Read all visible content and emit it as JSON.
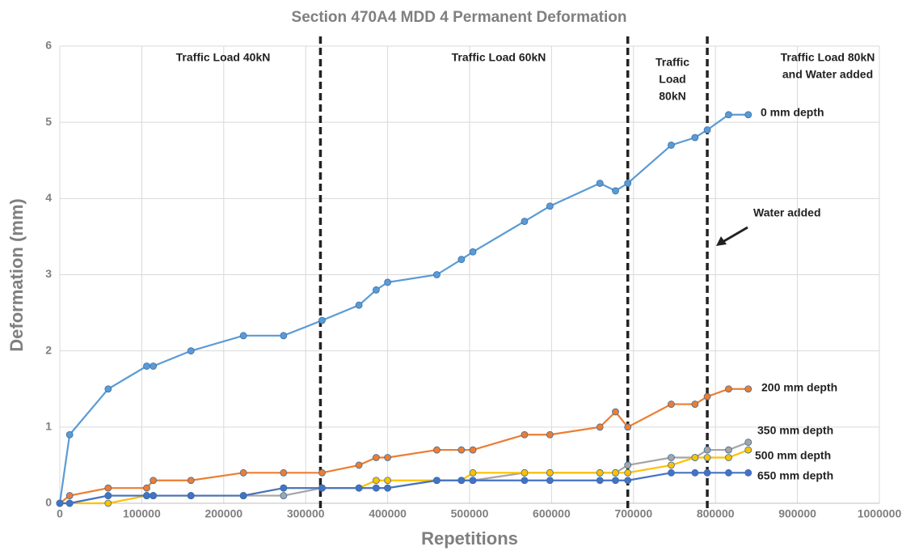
{
  "chart_data": {
    "type": "line",
    "title": "Section 470A4 MDD 4 Permanent Deformation",
    "x_label": "Repetitions",
    "y_label": "Deformation (mm)",
    "x": [
      0,
      12000,
      59000,
      106000,
      114000,
      160000,
      224000,
      273000,
      320000,
      365000,
      386000,
      400000,
      460000,
      490000,
      504000,
      567000,
      598000,
      659000,
      678000,
      693000,
      746000,
      775000,
      790000,
      816000,
      840000
    ],
    "series": [
      {
        "name": "0 mm depth",
        "color": "#5b9bd5",
        "values": [
          0,
          0.9,
          1.5,
          1.8,
          1.8,
          2.0,
          2.2,
          2.2,
          2.4,
          2.6,
          2.8,
          2.9,
          3.0,
          3.2,
          3.3,
          3.7,
          3.9,
          4.2,
          4.1,
          4.2,
          4.7,
          4.8,
          4.9,
          5.1,
          5.1
        ]
      },
      {
        "name": "200 mm depth",
        "color": "#ed7d31",
        "values": [
          0,
          0.1,
          0.2,
          0.2,
          0.3,
          0.3,
          0.4,
          0.4,
          0.4,
          0.5,
          0.6,
          0.6,
          0.7,
          0.7,
          0.7,
          0.9,
          0.9,
          1.0,
          1.2,
          1.0,
          1.3,
          1.3,
          1.4,
          1.5,
          1.5
        ]
      },
      {
        "name": "350 mm depth",
        "color": "#a5a5a5",
        "values": [
          0,
          0,
          0.1,
          0.1,
          0.1,
          0.1,
          0.1,
          0.1,
          0.2,
          0.2,
          0.2,
          0.2,
          0.3,
          0.3,
          0.3,
          0.4,
          0.4,
          0.4,
          0.4,
          0.5,
          0.6,
          0.6,
          0.7,
          0.7,
          0.8
        ]
      },
      {
        "name": "500 mm depth",
        "color": "#ffc000",
        "values": [
          0,
          0,
          0,
          0.1,
          0.1,
          0.1,
          0.1,
          0.2,
          0.2,
          0.2,
          0.3,
          0.3,
          0.3,
          0.3,
          0.4,
          0.4,
          0.4,
          0.4,
          0.4,
          0.4,
          0.5,
          0.6,
          0.6,
          0.6,
          0.7
        ]
      },
      {
        "name": "650 mm depth",
        "color": "#4472c4",
        "values": [
          0,
          0,
          0.1,
          0.1,
          0.1,
          0.1,
          0.1,
          0.2,
          0.2,
          0.2,
          0.2,
          0.2,
          0.3,
          0.3,
          0.3,
          0.3,
          0.3,
          0.3,
          0.3,
          0.3,
          0.4,
          0.4,
          0.4,
          0.4,
          0.4
        ]
      }
    ],
    "xlim": [
      0,
      1000000
    ],
    "xticks": [
      0,
      100000,
      200000,
      300000,
      400000,
      500000,
      600000,
      700000,
      800000,
      900000,
      1000000
    ],
    "ylim": [
      0,
      6
    ],
    "yticks": [
      0,
      1,
      2,
      3,
      4,
      5,
      6
    ],
    "grid": true,
    "vlines": [
      318000,
      693000,
      790000
    ],
    "region_labels": [
      [
        "Traffic Load 40kN"
      ],
      [
        "Traffic Load 60kN"
      ],
      [
        "Traffic",
        "Load",
        "80kN"
      ],
      [
        "Traffic Load 80kN",
        "and Water added"
      ]
    ],
    "arrow_label": "Water added"
  }
}
